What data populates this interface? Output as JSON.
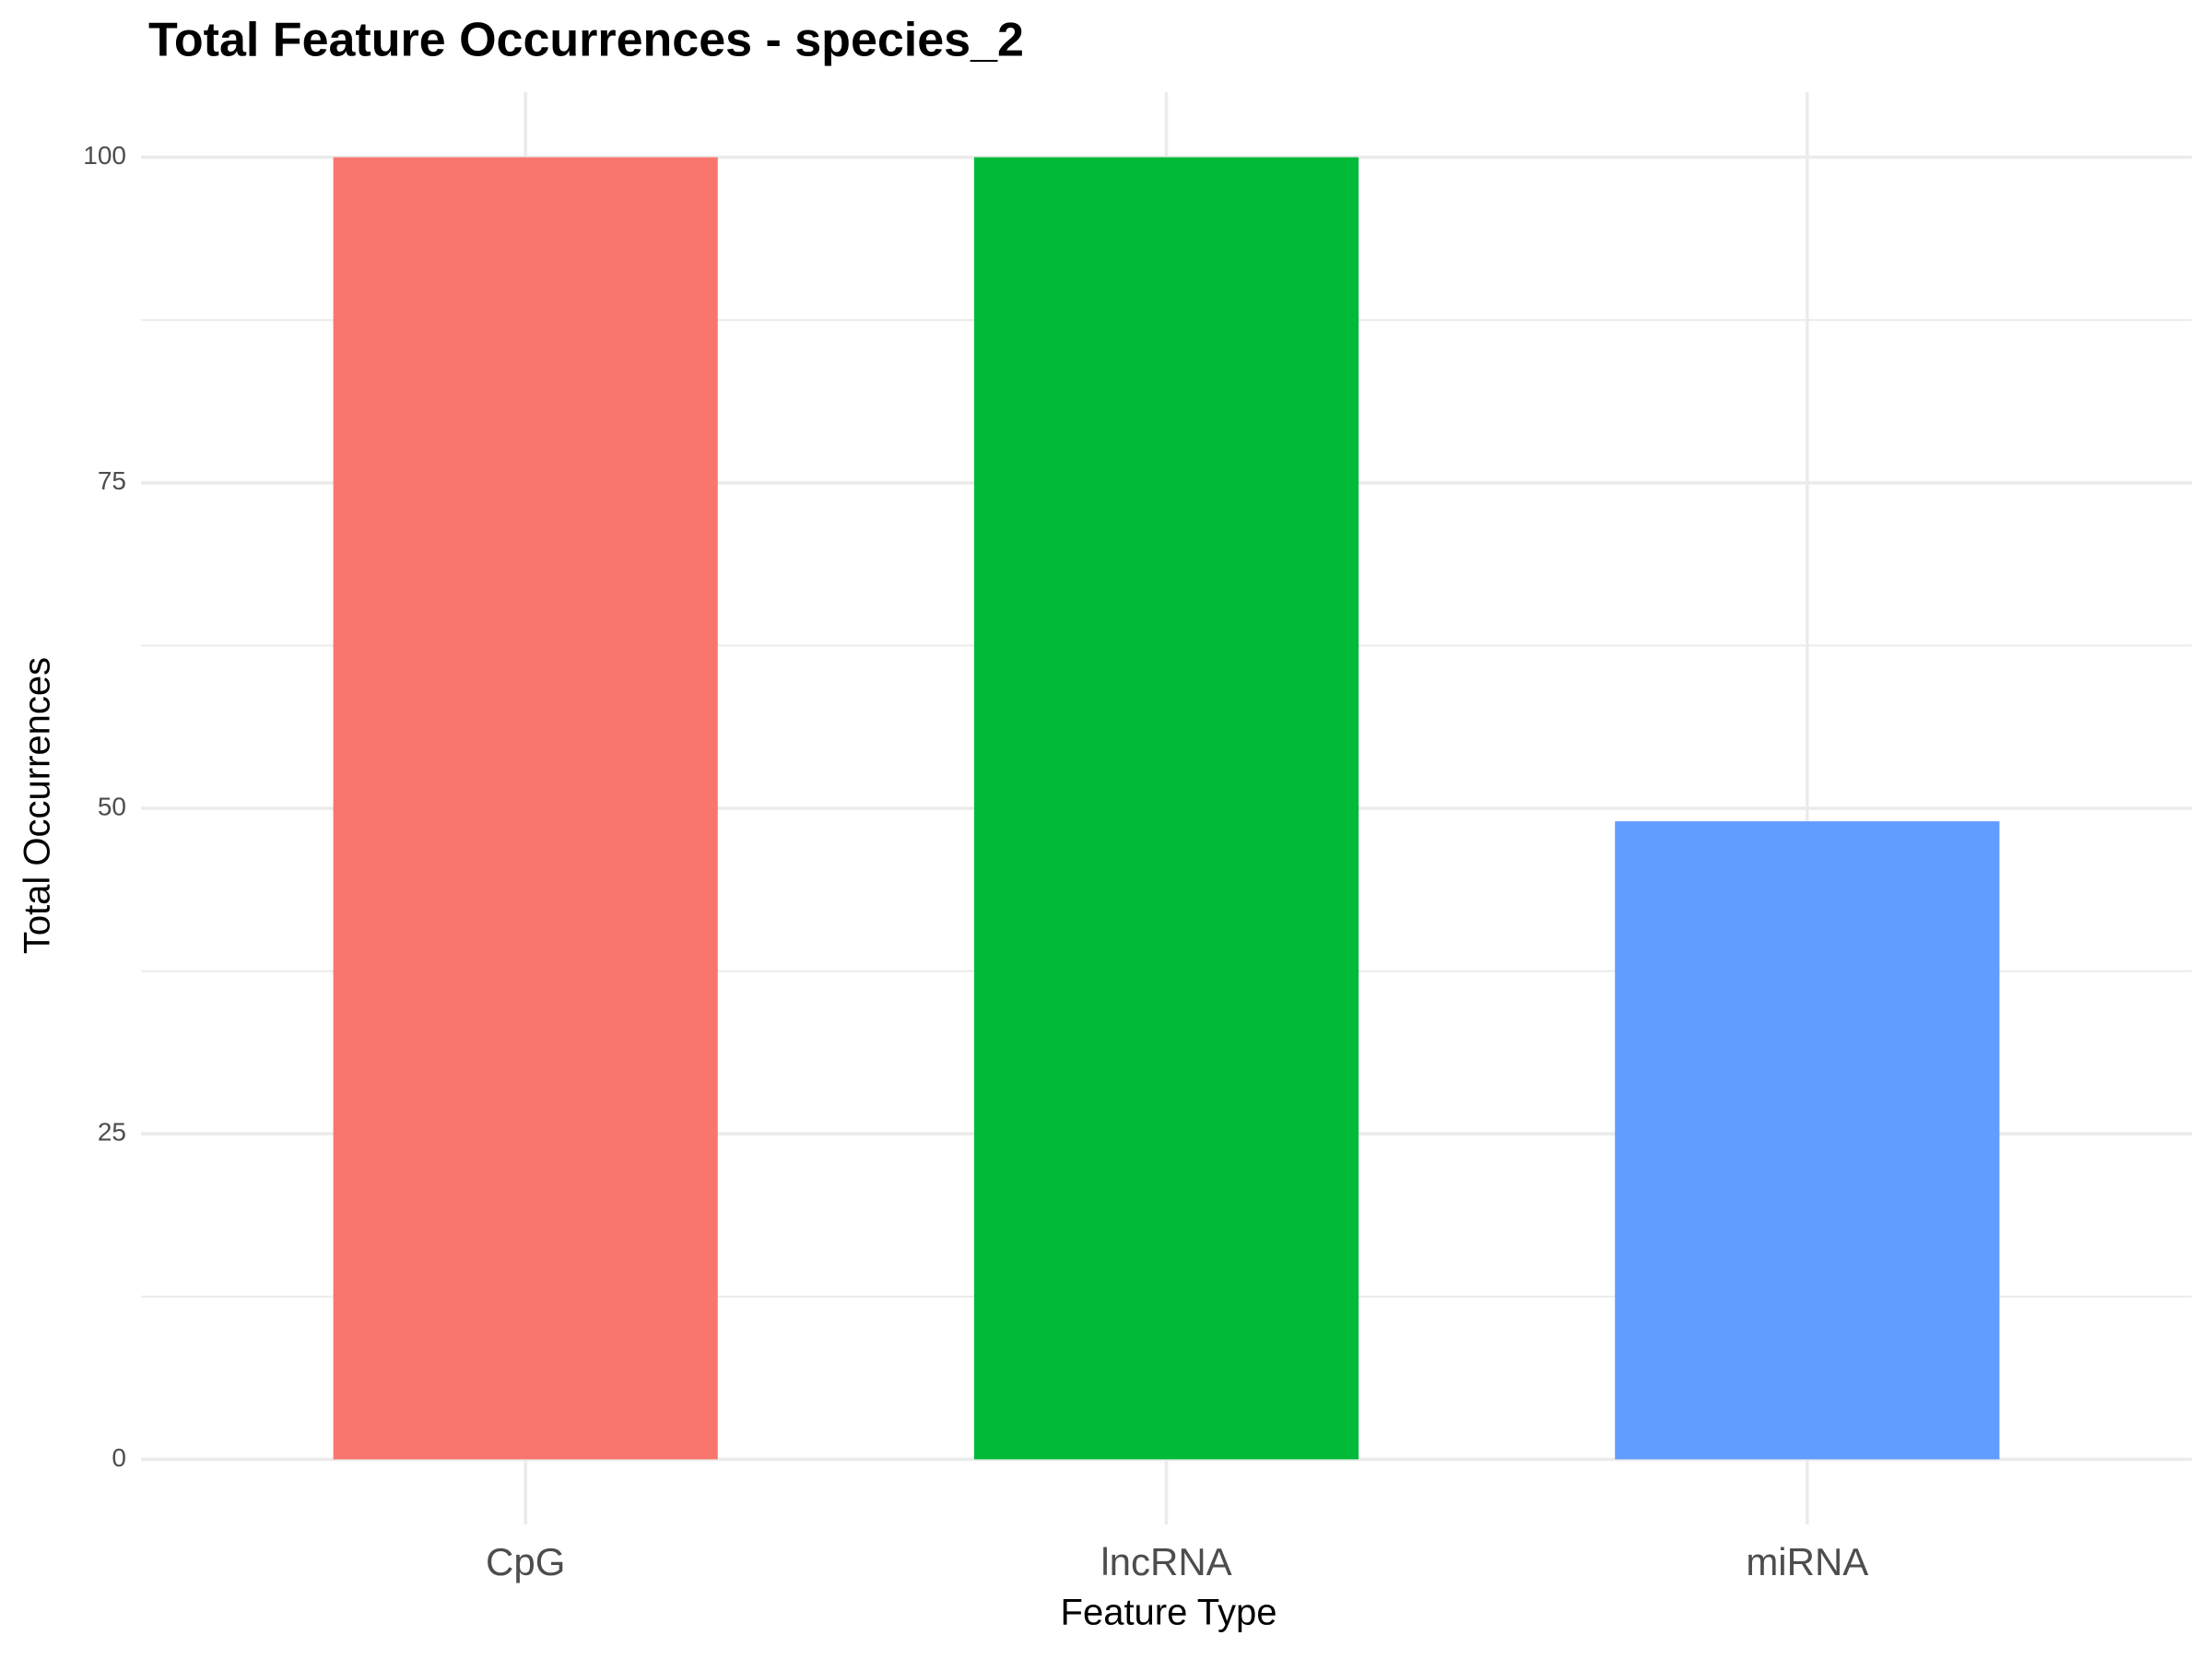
{
  "chart_data": {
    "type": "bar",
    "title": "Total Feature Occurrences - species_2",
    "x_label": "Feature Type",
    "y_label": "Total Occurrences",
    "categories": [
      "CpG",
      "lncRNA",
      "miRNA"
    ],
    "values": [
      100,
      100,
      49
    ],
    "colors": [
      "#F8766D",
      "#00BA38",
      "#619CFF"
    ],
    "ylim": [
      -5,
      105
    ],
    "yticks": [
      0,
      25,
      50,
      75,
      100
    ],
    "minor_yticks": [
      12.5,
      37.5,
      62.5,
      87.5
    ],
    "grid": true
  }
}
